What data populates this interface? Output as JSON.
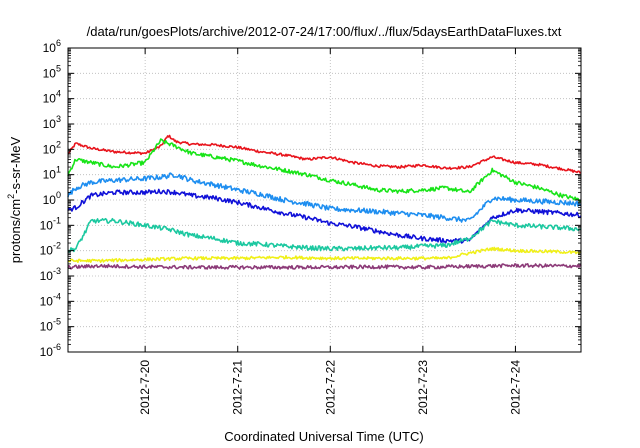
{
  "chart_data": {
    "type": "line",
    "title": "/data/run/goesPlots/archive/2012-07-24/17:00/flux/../flux/5daysEarthDataFluxes.txt",
    "xlabel": "Coordinated Universal Time (UTC)",
    "ylabel": {
      "prefix": "protons/cm",
      "superscript": "2",
      "suffix": "-s-sr-MeV"
    },
    "yscale": "log",
    "ylim": [
      -6,
      6
    ],
    "ytick_exponents": [
      -6,
      -5,
      -4,
      -3,
      -2,
      -1,
      0,
      1,
      2,
      3,
      4,
      5,
      6
    ],
    "ytick_base": "10",
    "xlim": [
      "2012-07-19 04:00",
      "2012-07-24 17:00"
    ],
    "xtick_positions": [
      "2012-07-20 00:00",
      "2012-07-21 00:00",
      "2012-07-22 00:00",
      "2012-07-23 00:00",
      "2012-07-24 00:00"
    ],
    "xtick_labels": [
      "2012-7-20",
      "2012-7-21",
      "2012-7-22",
      "2012-7-23",
      "2012-7-24"
    ],
    "grid": true,
    "series": [
      {
        "color": "#e8141c",
        "x": [
          "2012-07-19 04:00",
          "2012-07-19 06:00",
          "2012-07-19 10:00",
          "2012-07-19 16:00",
          "2012-07-20 00:00",
          "2012-07-20 04:00",
          "2012-07-20 06:00",
          "2012-07-20 08:00",
          "2012-07-20 12:00",
          "2012-07-20 18:00",
          "2012-07-21 00:00",
          "2012-07-21 06:00",
          "2012-07-21 12:00",
          "2012-07-21 18:00",
          "2012-07-22 00:00",
          "2012-07-22 06:00",
          "2012-07-22 12:00",
          "2012-07-22 18:00",
          "2012-07-23 00:00",
          "2012-07-23 06:00",
          "2012-07-23 12:00",
          "2012-07-23 18:00",
          "2012-07-24 00:00",
          "2012-07-24 06:00",
          "2012-07-24 12:00",
          "2012-07-24 17:00"
        ],
        "y": [
          65,
          170,
          110,
          80,
          70,
          130,
          350,
          200,
          160,
          150,
          120,
          80,
          60,
          40,
          50,
          30,
          22,
          20,
          24,
          18,
          20,
          50,
          30,
          25,
          17,
          12
        ]
      },
      {
        "color": "#18e418",
        "x": [
          "2012-07-19 04:00",
          "2012-07-19 06:00",
          "2012-07-19 10:00",
          "2012-07-19 16:00",
          "2012-07-20 00:00",
          "2012-07-20 04:00",
          "2012-07-20 08:00",
          "2012-07-20 12:00",
          "2012-07-20 18:00",
          "2012-07-21 00:00",
          "2012-07-21 06:00",
          "2012-07-21 12:00",
          "2012-07-21 18:00",
          "2012-07-22 00:00",
          "2012-07-22 06:00",
          "2012-07-22 12:00",
          "2012-07-22 18:00",
          "2012-07-23 00:00",
          "2012-07-23 06:00",
          "2012-07-23 12:00",
          "2012-07-23 18:00",
          "2012-07-24 00:00",
          "2012-07-24 06:00",
          "2012-07-24 12:00",
          "2012-07-24 17:00"
        ],
        "y": [
          10,
          40,
          30,
          20,
          30,
          220,
          130,
          70,
          50,
          35,
          22,
          15,
          10,
          6,
          4,
          2.5,
          2.2,
          2.5,
          3,
          2,
          15,
          5,
          3,
          1.5,
          1
        ]
      },
      {
        "color": "#1e8ef0",
        "x": [
          "2012-07-19 04:00",
          "2012-07-19 06:00",
          "2012-07-19 10:00",
          "2012-07-19 16:00",
          "2012-07-20 00:00",
          "2012-07-20 04:00",
          "2012-07-20 08:00",
          "2012-07-20 12:00",
          "2012-07-20 18:00",
          "2012-07-21 00:00",
          "2012-07-21 06:00",
          "2012-07-21 12:00",
          "2012-07-21 18:00",
          "2012-07-22 00:00",
          "2012-07-22 06:00",
          "2012-07-22 12:00",
          "2012-07-22 18:00",
          "2012-07-23 00:00",
          "2012-07-23 06:00",
          "2012-07-23 12:00",
          "2012-07-23 18:00",
          "2012-07-24 00:00",
          "2012-07-24 06:00",
          "2012-07-24 12:00",
          "2012-07-24 17:00"
        ],
        "y": [
          1.5,
          3,
          5,
          6,
          7,
          8,
          10,
          6,
          4,
          2.5,
          1.7,
          1,
          0.7,
          0.45,
          0.4,
          0.35,
          0.3,
          0.25,
          0.2,
          0.15,
          1.2,
          1,
          0.9,
          0.8,
          0.7
        ]
      },
      {
        "color": "#1010d8",
        "x": [
          "2012-07-19 04:00",
          "2012-07-19 06:00",
          "2012-07-19 10:00",
          "2012-07-19 16:00",
          "2012-07-20 00:00",
          "2012-07-20 04:00",
          "2012-07-20 08:00",
          "2012-07-20 12:00",
          "2012-07-20 18:00",
          "2012-07-21 00:00",
          "2012-07-21 06:00",
          "2012-07-21 12:00",
          "2012-07-21 18:00",
          "2012-07-22 00:00",
          "2012-07-22 06:00",
          "2012-07-22 12:00",
          "2012-07-22 18:00",
          "2012-07-23 00:00",
          "2012-07-23 06:00",
          "2012-07-23 12:00",
          "2012-07-23 18:00",
          "2012-07-24 00:00",
          "2012-07-24 06:00",
          "2012-07-24 12:00",
          "2012-07-24 17:00"
        ],
        "y": [
          0.4,
          0.5,
          1.5,
          2,
          2,
          2.2,
          2,
          1.5,
          1.2,
          0.8,
          0.5,
          0.3,
          0.2,
          0.12,
          0.09,
          0.06,
          0.04,
          0.03,
          0.025,
          0.025,
          0.2,
          0.4,
          0.35,
          0.3,
          0.25
        ]
      },
      {
        "color": "#1cc8a0",
        "x": [
          "2012-07-19 04:00",
          "2012-07-19 06:00",
          "2012-07-19 08:00",
          "2012-07-19 10:00",
          "2012-07-19 16:00",
          "2012-07-20 00:00",
          "2012-07-20 06:00",
          "2012-07-20 12:00",
          "2012-07-20 18:00",
          "2012-07-21 00:00",
          "2012-07-21 06:00",
          "2012-07-21 12:00",
          "2012-07-21 18:00",
          "2012-07-22 00:00",
          "2012-07-22 06:00",
          "2012-07-22 12:00",
          "2012-07-22 18:00",
          "2012-07-23 00:00",
          "2012-07-23 06:00",
          "2012-07-23 12:00",
          "2012-07-23 18:00",
          "2012-07-24 00:00",
          "2012-07-24 06:00",
          "2012-07-24 12:00",
          "2012-07-24 17:00"
        ],
        "y": [
          0.01,
          0.012,
          0.04,
          0.15,
          0.15,
          0.1,
          0.07,
          0.04,
          0.03,
          0.02,
          0.018,
          0.015,
          0.013,
          0.012,
          0.012,
          0.013,
          0.013,
          0.015,
          0.016,
          0.03,
          0.15,
          0.1,
          0.09,
          0.08,
          0.07
        ]
      },
      {
        "color": "#f0f018",
        "x": [
          "2012-07-19 04:00",
          "2012-07-19 12:00",
          "2012-07-20 00:00",
          "2012-07-20 12:00",
          "2012-07-21 00:00",
          "2012-07-21 12:00",
          "2012-07-22 00:00",
          "2012-07-22 12:00",
          "2012-07-23 00:00",
          "2012-07-23 06:00",
          "2012-07-23 12:00",
          "2012-07-23 18:00",
          "2012-07-24 00:00",
          "2012-07-24 12:00",
          "2012-07-24 17:00"
        ],
        "y": [
          0.004,
          0.004,
          0.0045,
          0.005,
          0.005,
          0.0055,
          0.005,
          0.005,
          0.005,
          0.005,
          0.008,
          0.012,
          0.01,
          0.009,
          0.008
        ]
      },
      {
        "color": "#8c3a78",
        "x": [
          "2012-07-19 04:00",
          "2012-07-19 12:00",
          "2012-07-20 00:00",
          "2012-07-20 12:00",
          "2012-07-21 00:00",
          "2012-07-21 12:00",
          "2012-07-22 00:00",
          "2012-07-22 12:00",
          "2012-07-23 00:00",
          "2012-07-23 12:00",
          "2012-07-24 00:00",
          "2012-07-24 12:00",
          "2012-07-24 17:00"
        ],
        "y": [
          0.0022,
          0.0025,
          0.0023,
          0.0022,
          0.0022,
          0.0022,
          0.0022,
          0.0023,
          0.0022,
          0.0024,
          0.0026,
          0.0025,
          0.0025
        ]
      }
    ]
  }
}
